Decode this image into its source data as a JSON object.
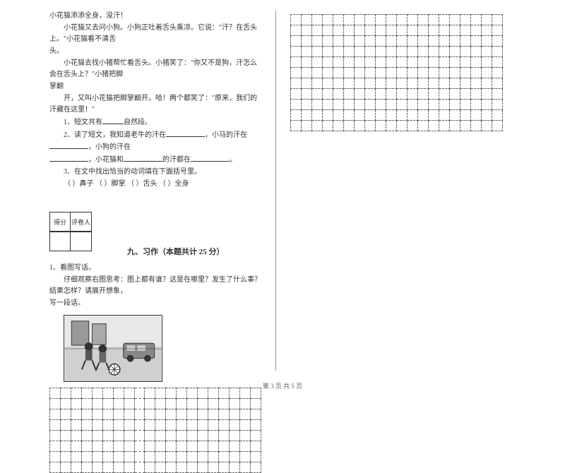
{
  "passage": {
    "line1": "小花猫添添全身，没汗！",
    "line2": "小花猫又去问小狗。小狗正吐着舌头乘凉。它说：\"汗？在舌头上。\"小花猫看不清舌",
    "line3": "头。",
    "line4": "小花猫去找小猪帮忙看舌头。小猪笑了：\"你又不是狗，汗怎么会在舌头上？\"小猪把脚",
    "line5": "掌翻",
    "line6": "开，又叫小花猫把脚掌翻开。哈！两个都笑了：\"原来，我们的汗藏在这里！\"",
    "q1": "1、短文共有",
    "q1_suffix": "自然段。",
    "q2": "2、读了短文，我知道老牛的汗在",
    "q2_mid": "，小马的汗在",
    "q2_end": "，小狗的汗在",
    "q2_line2a": "，小花猫和",
    "q2_line2b": "的汗都在",
    "q2_line2c": "。",
    "q3": "3、在文中找出恰当的动词填在下面括号里。",
    "q3_items": "（        ）鼻子        （        ）脚掌        （        ）舌头        （        ）全身"
  },
  "score": {
    "label1": "得分",
    "label2": "评卷人"
  },
  "section": {
    "title": "九、习作（本题共计 25 分）"
  },
  "writing": {
    "prompt_title": "1、看图写话。",
    "prompt_text": "仔细观察右图思考：图上都有谁？这是在哪里？发生了什么事？结果怎样？请展开想象，",
    "prompt_text2": "写一段话。"
  },
  "grid": {
    "left_rows": 8,
    "left_cols": 20,
    "right_rows": 11,
    "right_cols": 20,
    "cell_size": 15,
    "border_color": "#666666"
  },
  "footer": {
    "text": "第 3 页 共 5 页"
  },
  "colors": {
    "background": "#ffffff",
    "text": "#333333",
    "divider": "#999999"
  }
}
